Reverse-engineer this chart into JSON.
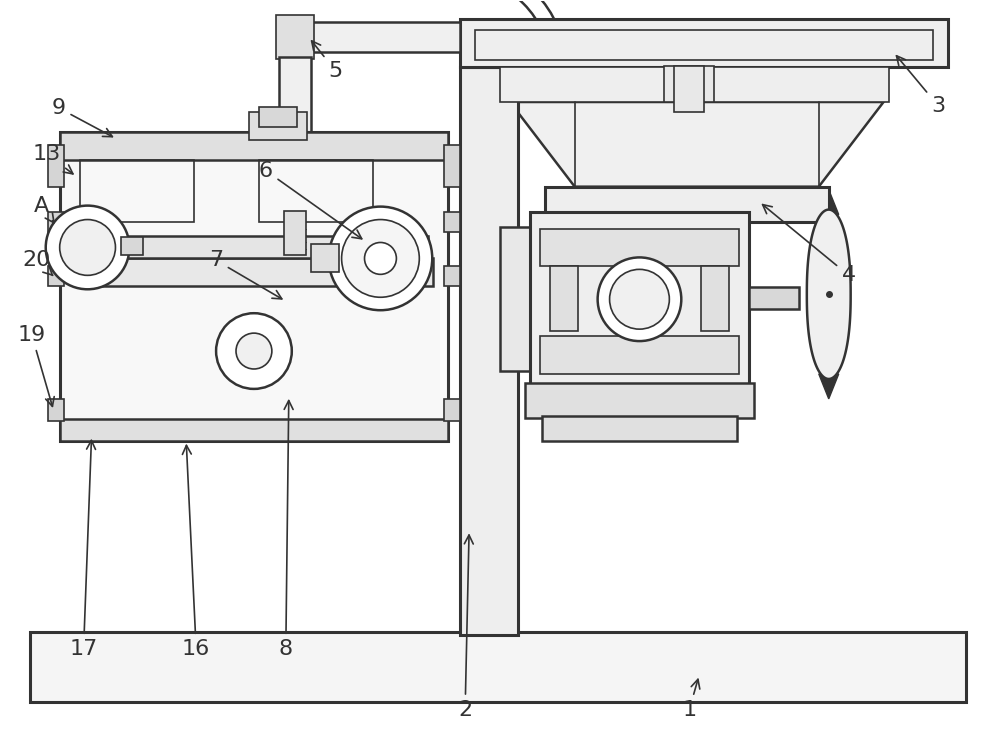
{
  "bg_color": "#ffffff",
  "line_color": "#333333",
  "lw_main": 1.8,
  "lw_thin": 1.2,
  "lw_thick": 2.2
}
